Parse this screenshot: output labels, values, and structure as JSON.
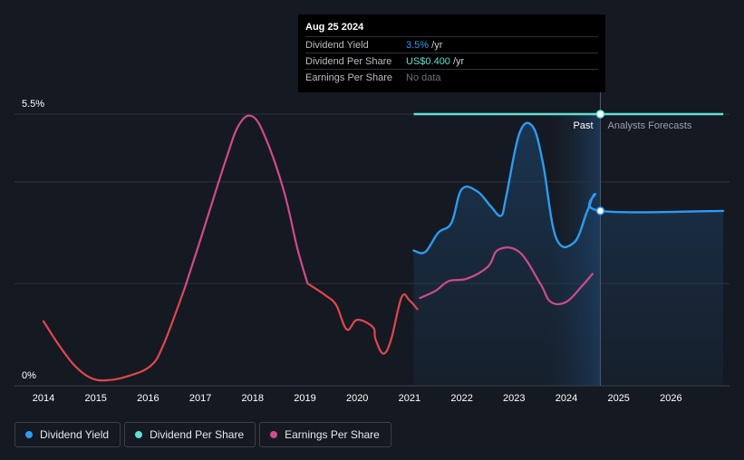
{
  "chart_data": {
    "type": "line",
    "y_axis": {
      "label_top": "5.5%",
      "label_bottom": "0%",
      "ylim": [
        0,
        5.5
      ]
    },
    "x_ticks": [
      "2014",
      "2015",
      "2016",
      "2017",
      "2018",
      "2019",
      "2020",
      "2021",
      "2022",
      "2023",
      "2024",
      "2025",
      "2026"
    ],
    "xlim": [
      2013.55,
      2027.0
    ],
    "divider_x": 2024.65,
    "labels": {
      "past": "Past",
      "forecast": "Analysts Forecasts"
    },
    "series": [
      {
        "name": "Dividend Yield",
        "color": "#2e9bf0",
        "points": [
          [
            2021.08,
            2.68
          ],
          [
            2021.3,
            2.65
          ],
          [
            2021.55,
            3.05
          ],
          [
            2021.8,
            3.25
          ],
          [
            2022.0,
            3.95
          ],
          [
            2022.3,
            3.9
          ],
          [
            2022.55,
            3.6
          ],
          [
            2022.75,
            3.4
          ],
          [
            2022.85,
            3.8
          ],
          [
            2023.1,
            5.1
          ],
          [
            2023.35,
            5.25
          ],
          [
            2023.55,
            4.5
          ],
          [
            2023.8,
            2.95
          ],
          [
            2024.15,
            2.85
          ],
          [
            2024.4,
            3.5
          ],
          [
            2024.55,
            3.85
          ],
          [
            2024.65,
            3.5
          ],
          [
            2027.0,
            3.5
          ]
        ]
      },
      {
        "name": "Dividend Per Share",
        "color": "#5fe0d2",
        "points": [
          [
            2021.08,
            5.5
          ],
          [
            2027.0,
            5.5
          ]
        ]
      },
      {
        "name": "Earnings Per Share",
        "color": "#d04a8c",
        "points": [
          [
            2021.2,
            1.7
          ],
          [
            2021.5,
            1.85
          ],
          [
            2021.75,
            2.05
          ],
          [
            2022.1,
            2.1
          ],
          [
            2022.5,
            2.35
          ],
          [
            2022.7,
            2.7
          ],
          [
            2023.1,
            2.65
          ],
          [
            2023.5,
            2.0
          ],
          [
            2023.7,
            1.62
          ],
          [
            2024.0,
            1.62
          ],
          [
            2024.3,
            1.95
          ],
          [
            2024.5,
            2.2
          ]
        ]
      },
      {
        "name": "Earnings history (red)",
        "color": "#e0464e",
        "points": [
          [
            2014.0,
            1.22
          ],
          [
            2014.3,
            0.72
          ],
          [
            2014.6,
            0.3
          ],
          [
            2014.9,
            0.05
          ],
          [
            2015.2,
            0.0
          ],
          [
            2015.6,
            0.08
          ],
          [
            2016.05,
            0.3
          ],
          [
            2016.3,
            0.75
          ],
          [
            2016.7,
            1.9
          ]
        ]
      }
    ],
    "earnings_history_full": {
      "pink_rise": [
        [
          2016.7,
          1.9
        ],
        [
          2017.0,
          2.9
        ],
        [
          2017.5,
          4.6
        ],
        [
          2017.75,
          5.3
        ],
        [
          2018.0,
          5.45
        ],
        [
          2018.25,
          5.0
        ],
        [
          2018.6,
          3.9
        ],
        [
          2018.85,
          2.75
        ],
        [
          2019.05,
          2.0
        ],
        [
          2019.4,
          1.75
        ],
        [
          2019.6,
          1.55
        ],
        [
          2019.8,
          1.05
        ],
        [
          2020.0,
          1.25
        ],
        [
          2020.3,
          1.1
        ],
        [
          2020.35,
          0.85
        ],
        [
          2020.5,
          0.55
        ],
        [
          2020.65,
          0.85
        ],
        [
          2020.85,
          1.72
        ],
        [
          2021.0,
          1.65
        ],
        [
          2021.15,
          1.47
        ],
        [
          2021.3,
          1.7
        ],
        [
          2021.5,
          1.9
        ],
        [
          2021.65,
          1.73
        ],
        [
          2021.75,
          1.62
        ],
        [
          2021.95,
          1.82
        ],
        [
          2022.1,
          2.0
        ]
      ]
    },
    "tooltip": {
      "date": "Aug 25 2024",
      "rows": [
        {
          "label": "Dividend Yield",
          "value": "3.5%",
          "unit": " /yr"
        },
        {
          "label": "Dividend Per Share",
          "value": "US$0.400",
          "unit": " /yr"
        },
        {
          "label": "Earnings Per Share",
          "value": "No data",
          "unit": ""
        }
      ]
    }
  },
  "legend": [
    {
      "label": "Dividend Yield",
      "color": "#2e9bf0"
    },
    {
      "label": "Dividend Per Share",
      "color": "#5fe0d2"
    },
    {
      "label": "Earnings Per Share",
      "color": "#d04a8c"
    }
  ]
}
